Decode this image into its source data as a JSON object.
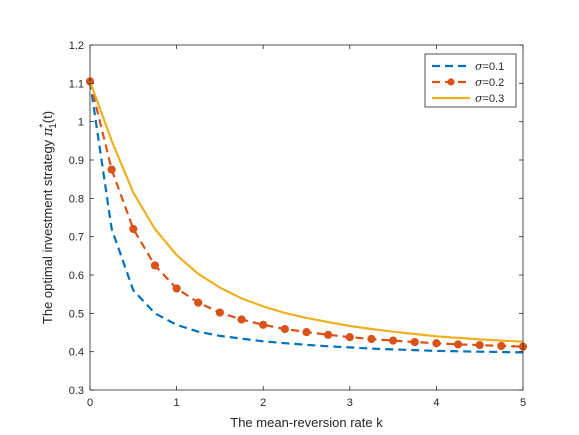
{
  "chart_data": {
    "type": "line",
    "xlabel": "The mean-reversion rate k",
    "ylabel": {
      "prefix": "The optimal investment strategy ",
      "pi": "π",
      "sup": "*",
      "sub": "1",
      "suffix": "(t)"
    },
    "xlim": [
      0,
      5
    ],
    "ylim": [
      0.3,
      1.2
    ],
    "xticks": [
      0,
      1,
      2,
      3,
      4,
      5
    ],
    "yticks": [
      0.3,
      0.4,
      0.5,
      0.6,
      0.7,
      0.8,
      0.9,
      1.0,
      1.1,
      1.2
    ],
    "ytick_labels": [
      "0.3",
      "0.4",
      "0.5",
      "0.6",
      "0.7",
      "0.8",
      "0.9",
      "1",
      "1.1",
      "1.2"
    ],
    "grid": false,
    "legend_position": "top-right",
    "series": [
      {
        "name": "σ=0.1",
        "sigma_label": "σ",
        "value_label": "=0.1",
        "color": "#0072BD",
        "style": "dashed",
        "marker": "none",
        "x": [
          0,
          0.1,
          0.25,
          0.5,
          0.75,
          1.0,
          1.25,
          1.5,
          1.75,
          2.0,
          2.25,
          2.5,
          2.75,
          3.0,
          3.25,
          3.5,
          3.75,
          4.0,
          4.25,
          4.5,
          4.75,
          5.0
        ],
        "y": [
          1.105,
          0.95,
          0.72,
          0.56,
          0.5,
          0.47,
          0.452,
          0.441,
          0.434,
          0.427,
          0.422,
          0.418,
          0.414,
          0.411,
          0.408,
          0.406,
          0.404,
          0.402,
          0.401,
          0.4,
          0.399,
          0.398
        ]
      },
      {
        "name": "σ=0.2",
        "sigma_label": "σ",
        "value_label": "=0.2",
        "color": "#D95319",
        "style": "dashed",
        "marker": "circle",
        "x": [
          0,
          0.25,
          0.5,
          0.75,
          1.0,
          1.25,
          1.5,
          1.75,
          2.0,
          2.25,
          2.5,
          2.75,
          3.0,
          3.25,
          3.5,
          3.75,
          4.0,
          4.25,
          4.5,
          4.75,
          5.0
        ],
        "y": [
          1.105,
          0.875,
          0.72,
          0.625,
          0.565,
          0.528,
          0.502,
          0.484,
          0.47,
          0.459,
          0.451,
          0.444,
          0.438,
          0.433,
          0.429,
          0.425,
          0.422,
          0.419,
          0.417,
          0.415,
          0.413
        ]
      },
      {
        "name": "σ=0.3",
        "sigma_label": "σ",
        "value_label": "=0.3",
        "color": "#EDB120",
        "style": "solid",
        "marker": "none",
        "x": [
          0,
          0.25,
          0.5,
          0.75,
          1.0,
          1.25,
          1.5,
          1.75,
          2.0,
          2.25,
          2.5,
          2.75,
          3.0,
          3.25,
          3.5,
          3.75,
          4.0,
          4.25,
          4.5,
          4.75,
          5.0
        ],
        "y": [
          1.105,
          0.95,
          0.815,
          0.72,
          0.652,
          0.603,
          0.567,
          0.539,
          0.518,
          0.501,
          0.488,
          0.477,
          0.467,
          0.459,
          0.452,
          0.446,
          0.44,
          0.436,
          0.432,
          0.429,
          0.426
        ]
      }
    ]
  }
}
